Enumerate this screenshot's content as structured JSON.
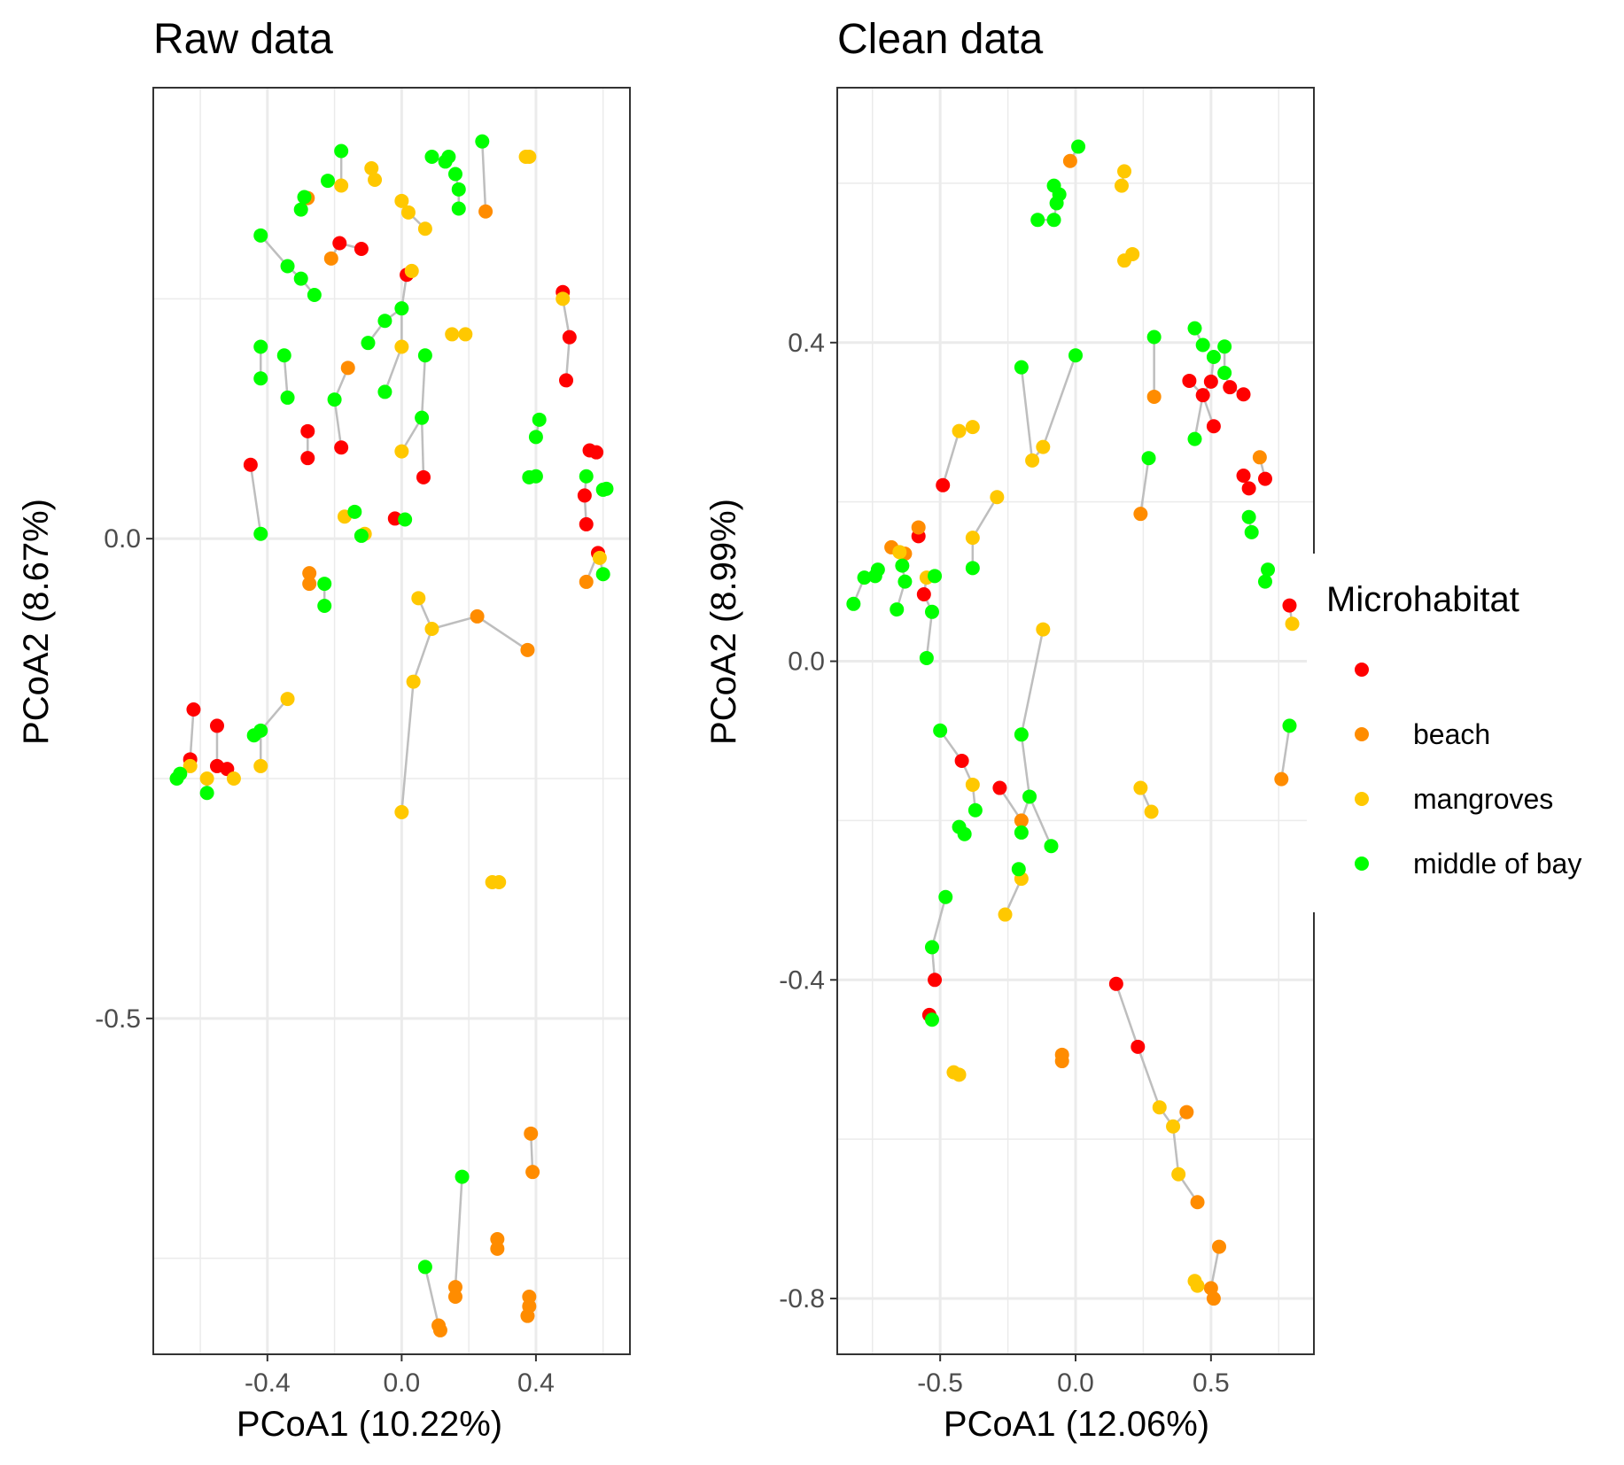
{
  "colors": {
    "background": "#ffffff",
    "panel_border": "#333333",
    "gridline": "#ebebeb",
    "tick_label": "#4d4d4d",
    "connector": "#bebebe",
    "red": "#ff0000",
    "beach": "#ff8c00",
    "mangroves": "#ffc800",
    "middle_of_bay": "#00ff00"
  },
  "legend": {
    "title": "Microhabitat",
    "entries": [
      {
        "key": "",
        "label": "",
        "color": "#ff0000"
      },
      {
        "key": "beach",
        "label": "beach",
        "color": "#ff8c00"
      },
      {
        "key": "mangroves",
        "label": "mangroves",
        "color": "#ffc800"
      },
      {
        "key": "middle of bay",
        "label": "middle of bay",
        "color": "#00ff00"
      }
    ]
  },
  "chart_data": [
    {
      "type": "scatter",
      "title": "Raw data",
      "xlabel": "PCoA1 (10.22%)",
      "ylabel": "PCoA2 (8.67%)",
      "xlim": [
        -0.74,
        0.68
      ],
      "ylim": [
        -0.85,
        0.47
      ],
      "xticks": [
        -0.4,
        0.0,
        0.4
      ],
      "xtick_labels": [
        "-0.4",
        "0.0",
        "0.4"
      ],
      "yticks": [
        0.0,
        -0.5
      ],
      "ytick_labels": [
        "0.0",
        "-0.5"
      ],
      "grid": true,
      "connections": "grey lines join paired samples",
      "series": [
        {
          "group": "",
          "color": "#ff0000",
          "points": [
            [
              -0.185,
              0.308
            ],
            [
              -0.12,
              0.302
            ],
            [
              0.015,
              0.275
            ],
            [
              -0.45,
              0.077
            ],
            [
              -0.28,
              0.112
            ],
            [
              -0.28,
              0.084
            ],
            [
              -0.18,
              0.095
            ],
            [
              0.065,
              0.064
            ],
            [
              -0.02,
              0.021
            ],
            [
              0.48,
              0.257
            ],
            [
              0.5,
              0.21
            ],
            [
              0.49,
              0.165
            ],
            [
              0.56,
              0.092
            ],
            [
              0.58,
              0.09
            ],
            [
              0.545,
              0.045
            ],
            [
              0.55,
              0.015
            ],
            [
              0.585,
              -0.015
            ],
            [
              -0.62,
              -0.178
            ],
            [
              -0.55,
              -0.195
            ],
            [
              -0.63,
              -0.23
            ],
            [
              -0.55,
              -0.237
            ],
            [
              -0.52,
              -0.24
            ]
          ]
        },
        {
          "group": "beach",
          "color": "#ff8c00",
          "points": [
            [
              -0.28,
              0.355
            ],
            [
              -0.21,
              0.292
            ],
            [
              -0.16,
              0.178
            ],
            [
              0.25,
              0.341
            ],
            [
              -0.275,
              -0.036
            ],
            [
              -0.275,
              -0.047
            ],
            [
              0.225,
              -0.081
            ],
            [
              0.375,
              -0.116
            ],
            [
              0.55,
              -0.045
            ],
            [
              0.385,
              -0.62
            ],
            [
              0.39,
              -0.66
            ],
            [
              0.285,
              -0.73
            ],
            [
              0.285,
              -0.74
            ],
            [
              0.16,
              -0.78
            ],
            [
              0.16,
              -0.79
            ],
            [
              0.38,
              -0.79
            ],
            [
              0.38,
              -0.8
            ],
            [
              0.375,
              -0.81
            ],
            [
              0.11,
              -0.82
            ],
            [
              0.115,
              -0.825
            ]
          ]
        },
        {
          "group": "mangroves",
          "color": "#ffc800",
          "points": [
            [
              -0.08,
              0.374
            ],
            [
              -0.09,
              0.386
            ],
            [
              -0.18,
              0.368
            ],
            [
              0.0,
              0.352
            ],
            [
              0.02,
              0.34
            ],
            [
              0.07,
              0.323
            ],
            [
              0.03,
              0.279
            ],
            [
              0.37,
              0.398
            ],
            [
              0.38,
              0.398
            ],
            [
              0.48,
              0.25
            ],
            [
              0.15,
              0.213
            ],
            [
              0.19,
              0.213
            ],
            [
              0.0,
              0.2
            ],
            [
              0.0,
              0.091
            ],
            [
              -0.17,
              0.023
            ],
            [
              -0.11,
              0.005
            ],
            [
              0.05,
              -0.062
            ],
            [
              0.09,
              -0.094
            ],
            [
              0.035,
              -0.149
            ],
            [
              0.0,
              -0.285
            ],
            [
              -0.34,
              -0.167
            ],
            [
              -0.42,
              -0.237
            ],
            [
              -0.5,
              -0.25
            ],
            [
              -0.63,
              -0.237
            ],
            [
              -0.58,
              -0.25
            ],
            [
              0.27,
              -0.358
            ],
            [
              0.29,
              -0.358
            ],
            [
              0.59,
              -0.02
            ]
          ]
        },
        {
          "group": "middle of bay",
          "color": "#00ff00",
          "points": [
            [
              -0.18,
              0.404
            ],
            [
              -0.29,
              0.356
            ],
            [
              -0.3,
              0.343
            ],
            [
              -0.22,
              0.373
            ],
            [
              0.09,
              0.398
            ],
            [
              0.14,
              0.398
            ],
            [
              0.13,
              0.393
            ],
            [
              0.16,
              0.38
            ],
            [
              0.17,
              0.364
            ],
            [
              0.17,
              0.344
            ],
            [
              0.24,
              0.414
            ],
            [
              -0.42,
              0.316
            ],
            [
              -0.34,
              0.284
            ],
            [
              -0.3,
              0.271
            ],
            [
              -0.26,
              0.254
            ],
            [
              -0.42,
              0.2
            ],
            [
              -0.42,
              0.167
            ],
            [
              -0.35,
              0.191
            ],
            [
              -0.34,
              0.147
            ],
            [
              -0.2,
              0.145
            ],
            [
              -0.05,
              0.153
            ],
            [
              0.0,
              0.24
            ],
            [
              -0.05,
              0.227
            ],
            [
              -0.1,
              0.204
            ],
            [
              0.07,
              0.191
            ],
            [
              0.06,
              0.126
            ],
            [
              0.41,
              0.124
            ],
            [
              0.4,
              0.106
            ],
            [
              0.38,
              0.064
            ],
            [
              0.4,
              0.065
            ],
            [
              0.55,
              0.065
            ],
            [
              0.61,
              0.052
            ],
            [
              0.6,
              0.051
            ],
            [
              0.6,
              -0.037
            ],
            [
              -0.42,
              0.005
            ],
            [
              -0.14,
              0.028
            ],
            [
              -0.12,
              0.003
            ],
            [
              0.01,
              0.02
            ],
            [
              -0.23,
              -0.047
            ],
            [
              -0.23,
              -0.07
            ],
            [
              -0.42,
              -0.2
            ],
            [
              -0.44,
              -0.205
            ],
            [
              -0.67,
              -0.25
            ],
            [
              -0.66,
              -0.245
            ],
            [
              -0.58,
              -0.265
            ],
            [
              0.18,
              -0.665
            ],
            [
              0.07,
              -0.759
            ]
          ]
        }
      ]
    },
    {
      "type": "scatter",
      "title": "Clean data",
      "xlabel": "PCoA1 (12.06%)",
      "ylabel": "PCoA2 (8.99%)",
      "xlim": [
        -0.88,
        0.88
      ],
      "ylim": [
        -0.87,
        0.72
      ],
      "xticks": [
        -0.5,
        0.0,
        0.5
      ],
      "xtick_labels": [
        "-0.5",
        "0.0",
        "0.5"
      ],
      "yticks": [
        0.4,
        0.0,
        -0.4,
        -0.8
      ],
      "ytick_labels": [
        "0.4",
        "0.0",
        "-0.4",
        "-0.8"
      ],
      "grid": true,
      "connections": "grey lines join paired samples",
      "series": [
        {
          "group": "",
          "color": "#ff0000",
          "points": [
            [
              -0.49,
              0.221
            ],
            [
              -0.58,
              0.157
            ],
            [
              -0.56,
              0.084
            ],
            [
              0.42,
              0.352
            ],
            [
              0.47,
              0.334
            ],
            [
              0.5,
              0.351
            ],
            [
              0.57,
              0.344
            ],
            [
              0.62,
              0.335
            ],
            [
              0.51,
              0.295
            ],
            [
              0.62,
              0.233
            ],
            [
              0.64,
              0.217
            ],
            [
              0.7,
              0.229
            ],
            [
              0.79,
              0.07
            ],
            [
              -0.42,
              -0.125
            ],
            [
              -0.28,
              -0.159
            ],
            [
              -0.52,
              -0.4
            ],
            [
              -0.54,
              -0.444
            ],
            [
              0.15,
              -0.405
            ],
            [
              0.23,
              -0.484
            ]
          ]
        },
        {
          "group": "beach",
          "color": "#ff8c00",
          "points": [
            [
              -0.02,
              0.628
            ],
            [
              0.29,
              0.332
            ],
            [
              0.68,
              0.256
            ],
            [
              0.24,
              0.185
            ],
            [
              -0.58,
              0.168
            ],
            [
              -0.68,
              0.143
            ],
            [
              -0.63,
              0.135
            ],
            [
              0.76,
              -0.148
            ],
            [
              -0.2,
              -0.2
            ],
            [
              -0.05,
              -0.494
            ],
            [
              -0.05,
              -0.502
            ],
            [
              0.41,
              -0.566
            ],
            [
              0.45,
              -0.679
            ],
            [
              0.53,
              -0.735
            ],
            [
              0.5,
              -0.787
            ],
            [
              0.51,
              -0.8
            ]
          ]
        },
        {
          "group": "mangroves",
          "color": "#ffc800",
          "points": [
            [
              0.18,
              0.615
            ],
            [
              0.17,
              0.597
            ],
            [
              0.21,
              0.511
            ],
            [
              0.18,
              0.503
            ],
            [
              -0.43,
              0.289
            ],
            [
              -0.38,
              0.294
            ],
            [
              -0.12,
              0.269
            ],
            [
              -0.16,
              0.252
            ],
            [
              -0.29,
              0.206
            ],
            [
              -0.38,
              0.155
            ],
            [
              -0.65,
              0.137
            ],
            [
              -0.55,
              0.105
            ],
            [
              -0.12,
              0.04
            ],
            [
              0.8,
              0.047
            ],
            [
              -0.38,
              -0.155
            ],
            [
              0.24,
              -0.159
            ],
            [
              0.28,
              -0.189
            ],
            [
              -0.2,
              -0.273
            ],
            [
              -0.26,
              -0.318
            ],
            [
              -0.45,
              -0.516
            ],
            [
              -0.43,
              -0.519
            ],
            [
              0.31,
              -0.56
            ],
            [
              0.36,
              -0.584
            ],
            [
              0.38,
              -0.644
            ],
            [
              0.44,
              -0.778
            ],
            [
              0.45,
              -0.784
            ]
          ]
        },
        {
          "group": "middle of bay",
          "color": "#00ff00",
          "points": [
            [
              0.01,
              0.646
            ],
            [
              -0.08,
              0.597
            ],
            [
              -0.06,
              0.586
            ],
            [
              -0.07,
              0.575
            ],
            [
              -0.14,
              0.554
            ],
            [
              -0.08,
              0.554
            ],
            [
              0.29,
              0.407
            ],
            [
              -0.2,
              0.369
            ],
            [
              0.0,
              0.384
            ],
            [
              0.44,
              0.418
            ],
            [
              0.47,
              0.397
            ],
            [
              0.51,
              0.382
            ],
            [
              0.55,
              0.395
            ],
            [
              0.55,
              0.362
            ],
            [
              0.44,
              0.279
            ],
            [
              0.27,
              0.255
            ],
            [
              0.64,
              0.181
            ],
            [
              0.65,
              0.162
            ],
            [
              0.71,
              0.115
            ],
            [
              0.7,
              0.1
            ],
            [
              0.79,
              -0.081
            ],
            [
              -0.73,
              0.115
            ],
            [
              -0.74,
              0.107
            ],
            [
              -0.78,
              0.105
            ],
            [
              -0.64,
              0.12
            ],
            [
              -0.63,
              0.1
            ],
            [
              -0.52,
              0.107
            ],
            [
              -0.66,
              0.065
            ],
            [
              -0.53,
              0.062
            ],
            [
              -0.38,
              0.117
            ],
            [
              -0.55,
              0.004
            ],
            [
              -0.5,
              -0.087
            ],
            [
              -0.2,
              -0.092
            ],
            [
              -0.37,
              -0.187
            ],
            [
              -0.43,
              -0.208
            ],
            [
              -0.41,
              -0.217
            ],
            [
              -0.17,
              -0.17
            ],
            [
              -0.2,
              -0.215
            ],
            [
              -0.09,
              -0.232
            ],
            [
              -0.21,
              -0.261
            ],
            [
              -0.48,
              -0.296
            ],
            [
              -0.53,
              -0.359
            ],
            [
              -0.53,
              -0.45
            ],
            [
              -0.82,
              0.072
            ]
          ]
        }
      ]
    }
  ]
}
